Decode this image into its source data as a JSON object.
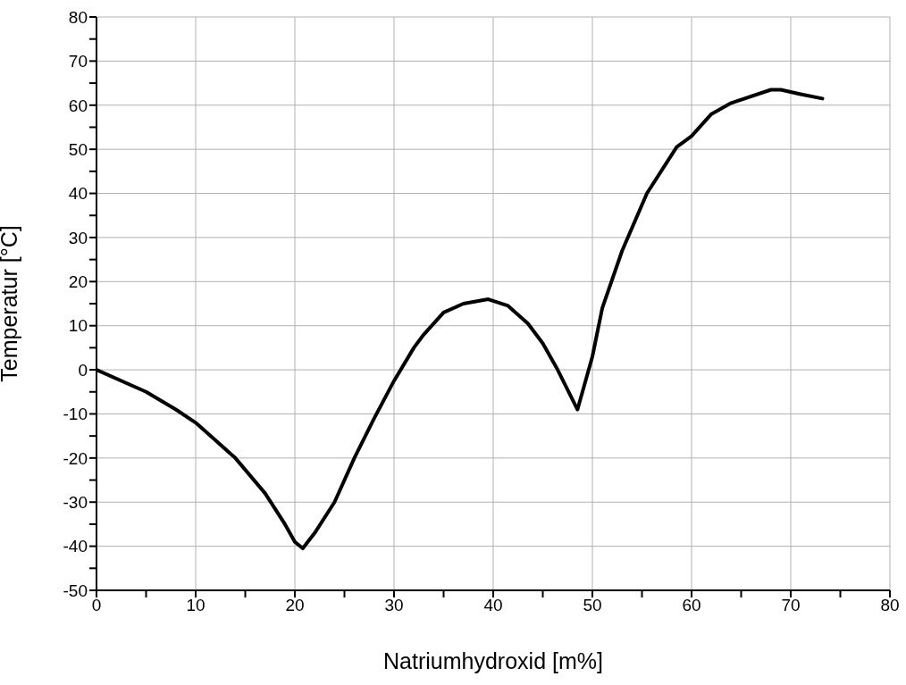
{
  "chart_data": {
    "type": "line",
    "xlabel": "Natriumhydroxid [m%]",
    "ylabel": "Temperatur [°C]",
    "x": [
      0,
      5,
      8,
      10,
      12,
      14,
      17,
      19,
      20,
      20.8,
      22,
      24,
      26,
      28,
      30,
      32,
      33,
      35,
      37,
      39.5,
      41.5,
      43.5,
      45,
      46.5,
      48.5,
      50,
      51,
      53,
      55.5,
      58.5,
      60,
      62,
      64,
      68,
      69,
      71,
      73.2
    ],
    "series": [
      {
        "color": "#000000",
        "values": [
          0,
          -5,
          -9,
          -12,
          -16,
          -20,
          -28,
          -35,
          -39,
          -40.5,
          -37,
          -30,
          -20,
          -11,
          -2.5,
          5,
          8,
          13,
          15,
          16,
          14.5,
          10.5,
          6,
          0,
          -9,
          3,
          14,
          27,
          40,
          50.5,
          53,
          58,
          60.5,
          63.5,
          63.5,
          62.5,
          61.5
        ]
      }
    ],
    "xlim": [
      0,
      80
    ],
    "ylim": [
      -50,
      80
    ],
    "xticks": [
      0,
      {
        "value": 5,
        "label": null
      },
      10,
      {
        "value": 15,
        "label": null
      },
      20,
      {
        "value": 25,
        "label": null
      },
      30,
      {
        "value": 35,
        "label": null
      },
      40,
      {
        "value": 45,
        "label": null
      },
      50,
      {
        "value": 55,
        "label": null
      },
      60,
      {
        "value": 65,
        "label": null
      },
      70,
      {
        "value": 75,
        "label": null
      },
      80
    ],
    "yticks": [
      -50,
      {
        "value": -45,
        "label": null
      },
      -40,
      {
        "value": -35,
        "label": null
      },
      -30,
      {
        "value": -25,
        "label": null
      },
      -20,
      {
        "value": -15,
        "label": null
      },
      -10,
      {
        "value": -5,
        "label": null
      },
      0,
      {
        "value": 5,
        "label": null
      },
      10,
      {
        "value": 15,
        "label": null
      },
      20,
      {
        "value": 25,
        "label": null
      },
      30,
      {
        "value": 35,
        "label": null
      },
      40,
      {
        "value": 45,
        "label": null
      },
      50,
      {
        "value": 55,
        "label": null
      },
      60,
      {
        "value": 65,
        "label": null
      },
      70,
      {
        "value": 75,
        "label": null
      },
      80
    ],
    "grid": true,
    "legend": false,
    "marker": "none",
    "line_style": "solid"
  }
}
